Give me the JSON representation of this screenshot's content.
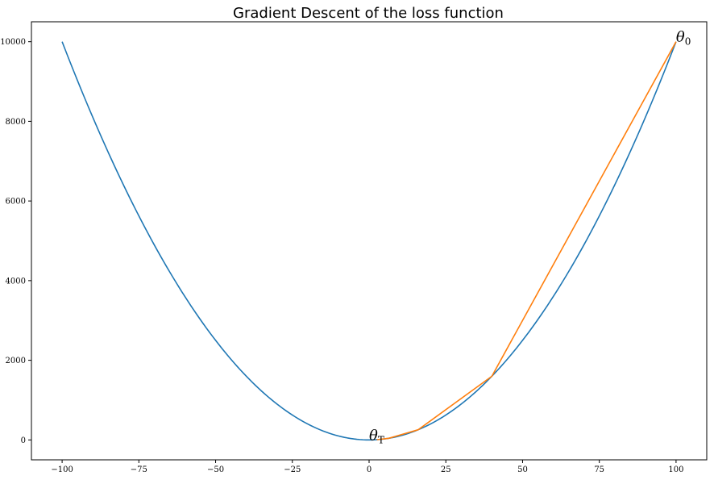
{
  "chart_data": {
    "type": "line",
    "title": "Gradient Descent of the loss function",
    "xlabel": "",
    "ylabel": "",
    "xlim": [
      -110,
      110
    ],
    "ylim": [
      -500,
      10500
    ],
    "grid": false,
    "x_ticks": [
      -100,
      -75,
      -50,
      -25,
      0,
      25,
      50,
      75,
      100
    ],
    "x_tick_labels": [
      "−100",
      "−75",
      "−50",
      "−25",
      "0",
      "25",
      "50",
      "75",
      "100"
    ],
    "y_ticks": [
      0,
      2000,
      4000,
      6000,
      8000,
      10000
    ],
    "y_tick_labels": [
      "0",
      "2000",
      "4000",
      "6000",
      "8000",
      "10000"
    ],
    "series": [
      {
        "function": "x^2",
        "color": "#1f77b4",
        "x_range": [
          -100,
          100
        ]
      },
      {
        "color": "#ff7f0e",
        "x": [
          100,
          40,
          16,
          6.4,
          2.56
        ],
        "y": [
          10000,
          1600,
          256,
          40.96,
          6.5536
        ]
      }
    ],
    "annotations": [
      {
        "main": "θ",
        "sub": "0",
        "x": 100,
        "y": 10000
      },
      {
        "main": "θ",
        "sub": "T",
        "x": 0,
        "y": 0
      }
    ]
  }
}
